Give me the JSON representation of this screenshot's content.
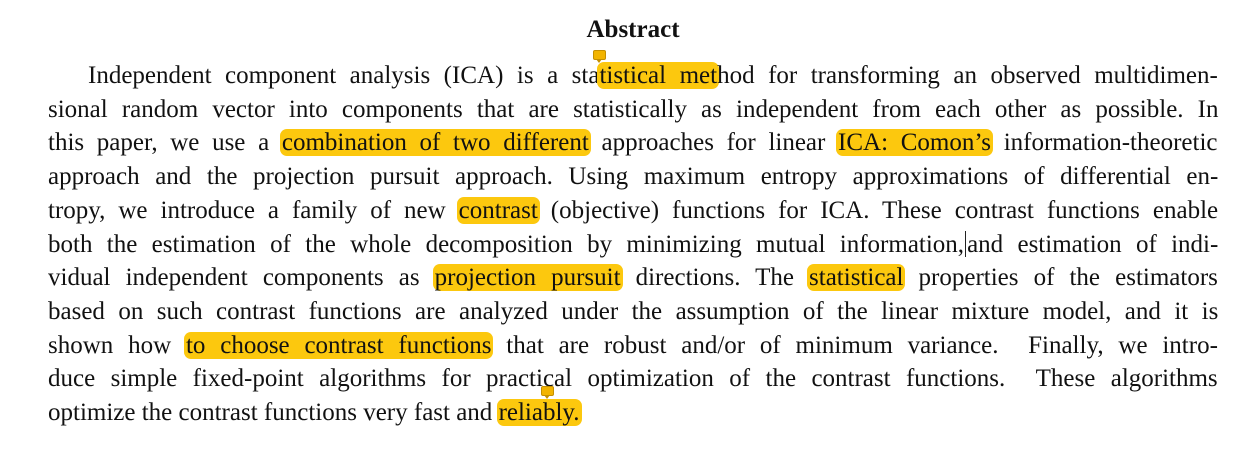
{
  "document": {
    "title": "Abstract",
    "lines": [
      [
        {
          "t": "Independent component analysis (ICA) is a sta"
        },
        {
          "t": "tistical met",
          "h": true
        },
        {
          "t": "hod for transforming an observed multidimen-"
        }
      ],
      [
        {
          "t": "sional random vector into components that are statistically as independent from each other as possible. In"
        }
      ],
      [
        {
          "t": "this paper, we use a "
        },
        {
          "t": "combination of two different",
          "h": true
        },
        {
          "t": " approaches for linear "
        },
        {
          "t": "ICA: Comon’s",
          "h": true
        },
        {
          "t": " information-theoretic"
        }
      ],
      [
        {
          "t": "approach and the projection pursuit approach. Using maximum entropy approximations of differential en-"
        }
      ],
      [
        {
          "t": "tropy, we introduce a family of new "
        },
        {
          "t": "contrast",
          "h": true
        },
        {
          "t": " (objective) functions for ICA. These contrast functions enable"
        }
      ],
      [
        {
          "t": "both the estimation of the whole decomposition by minimizing mutual information,"
        },
        {
          "cursor": true
        },
        {
          "t": "and estimation of indi-"
        }
      ],
      [
        {
          "t": "vidual independent components as "
        },
        {
          "t": "projection pursuit",
          "h": true
        },
        {
          "t": " directions. The "
        },
        {
          "t": "statistical",
          "h": true
        },
        {
          "t": " properties of the estimators"
        }
      ],
      [
        {
          "t": "based on such contrast functions are analyzed under the assumption of the linear mixture model, and it is"
        }
      ],
      [
        {
          "t": "shown how "
        },
        {
          "t": "to choose contrast functions",
          "h": true
        },
        {
          "t": " that are robust and/or of minimum variance.  Finally, we intro-"
        }
      ],
      [
        {
          "t": "duce simple fixed-point algorithms for practical optimization of the contrast functions.  These algorithms"
        }
      ],
      [
        {
          "t": "optimize the contrast functions very fast and "
        },
        {
          "t": "reliably.",
          "h": true
        }
      ]
    ]
  },
  "colors": {
    "highlight": "#fcc80e",
    "text": "#111111",
    "note_icon": "#f2b400"
  },
  "icons": [
    "comment-note-icon",
    "comment-note-icon"
  ]
}
